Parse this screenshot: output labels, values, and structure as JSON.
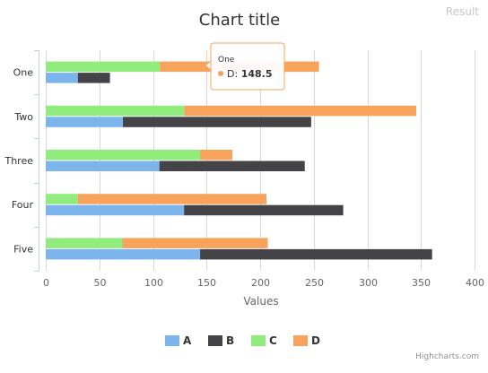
{
  "header": {
    "result_label": "Result"
  },
  "chart_data": {
    "type": "bar",
    "stacking": "normal",
    "orientation": "horizontal",
    "title": "Chart title",
    "xlabel": "",
    "ylabel": "Values",
    "categories": [
      "One",
      "Two",
      "Three",
      "Four",
      "Five"
    ],
    "stacks": [
      {
        "name": "stack-1",
        "series": [
          "A",
          "B"
        ]
      },
      {
        "name": "stack-2",
        "series": [
          "C",
          "D"
        ]
      }
    ],
    "series": [
      {
        "name": "A",
        "color": "#7cb5ec",
        "stack": "stack-1",
        "values": [
          30,
          72,
          106,
          129,
          144
        ]
      },
      {
        "name": "B",
        "color": "#434348",
        "stack": "stack-1",
        "values": [
          29.9,
          175.6,
          135.6,
          148.5,
          216.4
        ]
      },
      {
        "name": "C",
        "color": "#90ed7d",
        "stack": "stack-2",
        "values": [
          106.4,
          129.2,
          144,
          29.9,
          71.5
        ]
      },
      {
        "name": "D",
        "color": "#f7a35c",
        "stack": "stack-2",
        "values": [
          148.5,
          216.4,
          30,
          176,
          135.6
        ]
      }
    ],
    "ylim": [
      0,
      400
    ],
    "ticks": [
      0,
      50,
      100,
      150,
      200,
      250,
      300,
      350,
      400
    ],
    "grid": true,
    "legend_position": "bottom",
    "tooltip": {
      "header": "One",
      "series": "D",
      "value": "148.5",
      "color": "#f7a35c"
    },
    "credits": "Highcharts.com"
  }
}
